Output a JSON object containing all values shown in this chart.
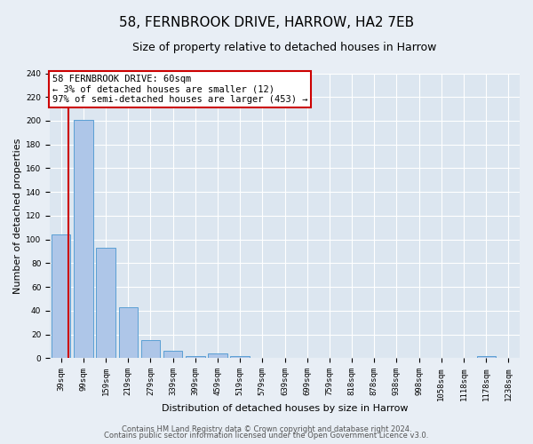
{
  "title_line1": "58, FERNBROOK DRIVE, HARROW, HA2 7EB",
  "title_line2": "Size of property relative to detached houses in Harrow",
  "xlabel": "Distribution of detached houses by size in Harrow",
  "ylabel": "Number of detached properties",
  "bar_labels": [
    "39sqm",
    "99sqm",
    "159sqm",
    "219sqm",
    "279sqm",
    "339sqm",
    "399sqm",
    "459sqm",
    "519sqm",
    "579sqm",
    "639sqm",
    "699sqm",
    "759sqm",
    "818sqm",
    "878sqm",
    "938sqm",
    "998sqm",
    "1058sqm",
    "1118sqm",
    "1178sqm",
    "1238sqm"
  ],
  "bar_values": [
    104,
    201,
    93,
    43,
    15,
    6,
    2,
    4,
    2,
    0,
    0,
    0,
    0,
    0,
    0,
    0,
    0,
    0,
    0,
    2,
    0
  ],
  "bar_color": "#aec6e8",
  "bar_edge_color": "#5a9fd4",
  "ylim": [
    0,
    240
  ],
  "yticks": [
    0,
    20,
    40,
    60,
    80,
    100,
    120,
    140,
    160,
    180,
    200,
    220,
    240
  ],
  "annotation_title": "58 FERNBROOK DRIVE: 60sqm",
  "annotation_line2": "← 3% of detached houses are smaller (12)",
  "annotation_line3": "97% of semi-detached houses are larger (453) →",
  "annotation_box_facecolor": "#ffffff",
  "annotation_box_edgecolor": "#cc0000",
  "footer_line1": "Contains HM Land Registry data © Crown copyright and database right 2024.",
  "footer_line2": "Contains public sector information licensed under the Open Government Licence v3.0.",
  "background_color": "#e8eef5",
  "plot_bg_color": "#dce6f0",
  "grid_color": "#ffffff",
  "vline_color": "#cc0000",
  "vline_x": 0.33,
  "title_fontsize": 11,
  "subtitle_fontsize": 9,
  "axis_label_fontsize": 8,
  "tick_label_fontsize": 6.5,
  "footer_fontsize": 6,
  "annotation_fontsize": 7.5
}
